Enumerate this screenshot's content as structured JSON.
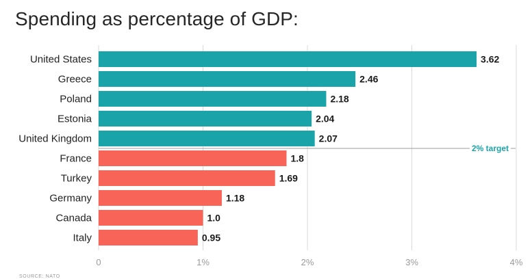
{
  "title": "Spending as percentage of GDP:",
  "footer": "SOURCE: NATO",
  "colors": {
    "above_target": "#1aa3a8",
    "below_target": "#f96458",
    "grid": "#d9d9d9",
    "target_line": "#9e9e9e"
  },
  "chart_data": {
    "type": "bar",
    "orientation": "horizontal",
    "title": "Spending as percentage of GDP:",
    "categories": [
      "United States",
      "Greece",
      "Poland",
      "Estonia",
      "United Kingdom",
      "France",
      "Turkey",
      "Germany",
      "Canada",
      "Italy"
    ],
    "values": [
      3.62,
      2.46,
      2.18,
      2.04,
      2.07,
      1.8,
      1.69,
      1.18,
      1.0,
      0.95
    ],
    "value_labels": [
      "3.62",
      "2.46",
      "2.18",
      "2.04",
      "2.07",
      "1.8",
      "1.69",
      "1.18",
      "1.0",
      "0.95"
    ],
    "xlim": [
      0,
      4
    ],
    "xticks": [
      0,
      1,
      2,
      3,
      4
    ],
    "xtick_labels": [
      "0",
      "1%",
      "2%",
      "3%",
      "4%"
    ],
    "grid": true,
    "reference_line": {
      "value": 2,
      "label": "2% target"
    },
    "above_target_count": 5
  }
}
